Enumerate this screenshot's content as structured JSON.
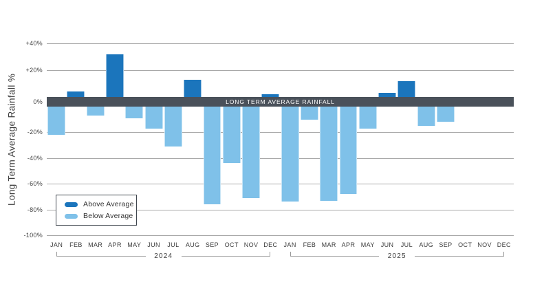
{
  "chart_data": {
    "type": "bar",
    "title": "",
    "ylabel": "Long Term Average Rainfall %",
    "band_label": "LONG TERM AVERAGE RAINFALL",
    "ylim": [
      -100,
      40
    ],
    "yticks": [
      40,
      20,
      0,
      -20,
      -40,
      -60,
      -80,
      -100
    ],
    "ytick_labels": [
      "+40%",
      "+20%",
      "0%",
      "-20%",
      "-40%",
      "-60%",
      "-80%",
      "-100%"
    ],
    "months": [
      "JAN",
      "FEB",
      "MAR",
      "APR",
      "MAY",
      "JUN",
      "JUL",
      "AUG",
      "SEP",
      "OCT",
      "NOV",
      "DEC"
    ],
    "series": [
      {
        "name": "2024",
        "values": [
          -22,
          4,
          -7,
          32,
          -9,
          -17,
          -31,
          13,
          -76,
          -44,
          -71,
          2
        ]
      },
      {
        "name": "2025",
        "values": [
          -74,
          -10,
          -73,
          -68,
          -17,
          3,
          12,
          -15,
          -12,
          null,
          null,
          null
        ]
      }
    ],
    "legend": [
      {
        "label": "Above Average",
        "color_key": "above"
      },
      {
        "label": "Below Average",
        "color_key": "below"
      }
    ],
    "colors": {
      "above": "#1b75bc",
      "below": "#7fc1e9",
      "band": "#4a515a",
      "gridline": "#a8a8a8",
      "text": "#3d3d3d",
      "legend_border": "#41474f"
    },
    "grid": true,
    "legend_position": "bottom-left"
  }
}
